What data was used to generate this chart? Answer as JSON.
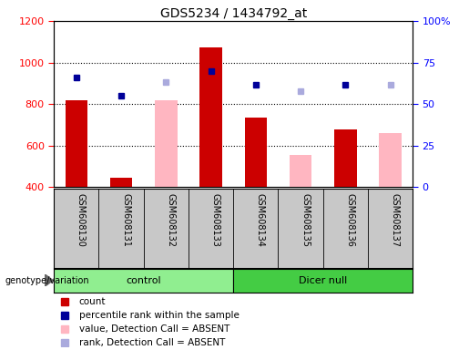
{
  "title": "GDS5234 / 1434792_at",
  "samples": [
    "GSM608130",
    "GSM608131",
    "GSM608132",
    "GSM608133",
    "GSM608134",
    "GSM608135",
    "GSM608136",
    "GSM608137"
  ],
  "count": [
    820,
    445,
    null,
    1075,
    735,
    null,
    680,
    null
  ],
  "count_absent": [
    null,
    null,
    820,
    null,
    null,
    555,
    null,
    660
  ],
  "percentile_rank": [
    930,
    840,
    null,
    960,
    895,
    null,
    895,
    null
  ],
  "rank_absent": [
    null,
    null,
    905,
    null,
    null,
    863,
    null,
    893
  ],
  "ylim_left": [
    400,
    1200
  ],
  "ylim_right": [
    0,
    100
  ],
  "yticks_left": [
    400,
    600,
    800,
    1000,
    1200
  ],
  "yticks_right": [
    0,
    25,
    50,
    75,
    100
  ],
  "ytick_labels_right": [
    "0",
    "25",
    "50",
    "75",
    "100%"
  ],
  "bar_color_red": "#CC0000",
  "bar_color_pink": "#FFB6C1",
  "dot_color_blue": "#000099",
  "dot_color_lightblue": "#AAAADD",
  "bg_color": "#C8C8C8",
  "plot_bg": "#FFFFFF",
  "control_color": "#90EE90",
  "dicer_color": "#44CC44",
  "grid_lines": [
    600,
    800,
    1000
  ],
  "legend_items": [
    {
      "color": "#CC0000",
      "label": "count"
    },
    {
      "color": "#000099",
      "label": "percentile rank within the sample"
    },
    {
      "color": "#FFB6C1",
      "label": "value, Detection Call = ABSENT"
    },
    {
      "color": "#AAAADD",
      "label": "rank, Detection Call = ABSENT"
    }
  ]
}
